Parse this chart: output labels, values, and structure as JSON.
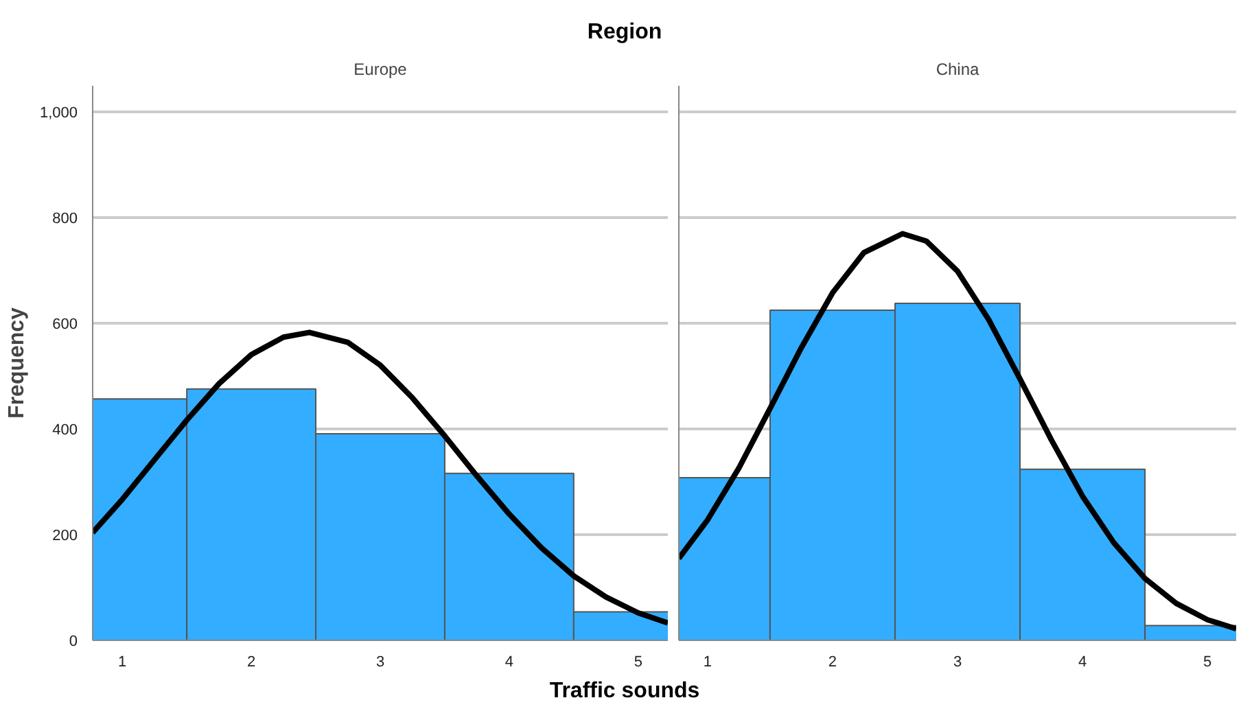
{
  "chart_data": [
    {
      "type": "histogram",
      "title": "Region",
      "subtitle": "Europe",
      "xlabel": "Traffic sounds",
      "ylabel": "Frequency",
      "bins": [
        0.5,
        1.5,
        2.5,
        3.5,
        4.5,
        5.5
      ],
      "values": [
        457,
        476,
        391,
        316,
        54
      ],
      "color": "#33adff",
      "series": [
        {
          "type": "line",
          "color": "#000000",
          "x": [
            0.77,
            1.0,
            1.25,
            1.5,
            1.75,
            2.0,
            2.25,
            2.45,
            2.75,
            3.0,
            3.25,
            3.5,
            3.75,
            4.0,
            4.25,
            4.5,
            4.75,
            5.0,
            5.23
          ],
          "values": [
            204,
            267,
            342,
            417,
            486,
            541,
            574,
            583,
            564,
            521,
            459,
            387,
            311,
            239,
            175,
            122,
            82,
            52,
            33
          ]
        }
      ],
      "xlim": [
        0.77,
        5.23
      ],
      "xticks": [
        1,
        2,
        3,
        4,
        5
      ],
      "ylim": [
        0,
        1050
      ],
      "yticks": [
        0,
        200,
        400,
        600,
        800,
        {
          "value": 1000,
          "label": "1,000"
        }
      ],
      "grid": "y"
    },
    {
      "type": "histogram",
      "subtitle": "China",
      "bins": [
        0.5,
        1.5,
        2.5,
        3.5,
        4.5,
        5.5
      ],
      "values": [
        308,
        625,
        638,
        324,
        28
      ],
      "color": "#33adff",
      "series": [
        {
          "type": "line",
          "color": "#000000",
          "x": [
            0.77,
            1.0,
            1.25,
            1.5,
            1.75,
            2.0,
            2.25,
            2.56,
            2.75,
            3.0,
            3.25,
            3.5,
            3.75,
            4.0,
            4.25,
            4.5,
            4.75,
            5.0,
            5.23
          ],
          "values": [
            155,
            228,
            326,
            439,
            554,
            658,
            734,
            770,
            756,
            699,
            607,
            495,
            380,
            273,
            185,
            117,
            70,
            39,
            22
          ]
        }
      ],
      "xlim": [
        0.77,
        5.23
      ],
      "xticks": [
        1,
        2,
        3,
        4,
        5
      ],
      "ylim": [
        0,
        1050
      ],
      "yticks": [
        0,
        200,
        400,
        600,
        800,
        1000
      ],
      "grid": "y",
      "tick_labels": "x"
    }
  ]
}
